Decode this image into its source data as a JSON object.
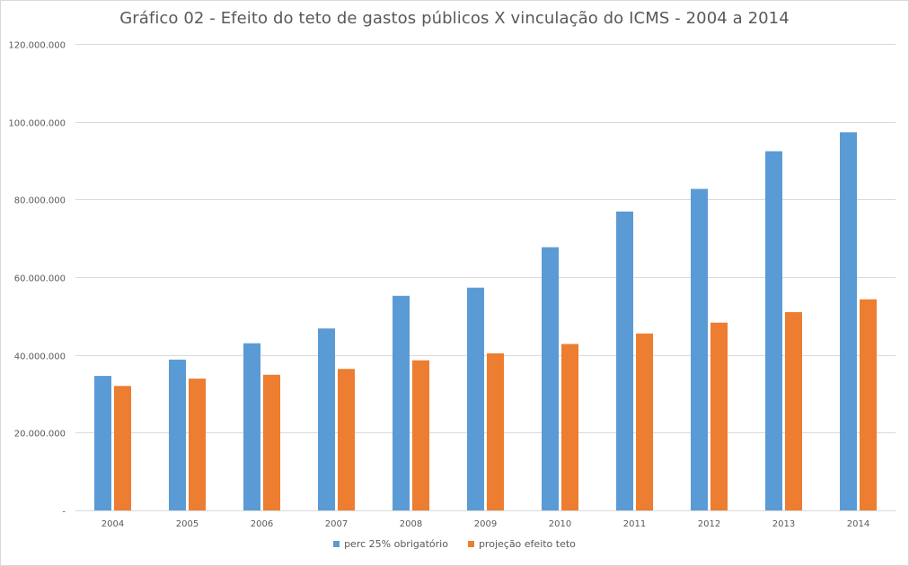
{
  "chart_data": {
    "type": "bar",
    "title": "Gráfico 02 - Efeito do teto de gastos públicos X vinculação do ICMS - 2004 a 2014",
    "xlabel": "",
    "ylabel": "",
    "categories": [
      "2004",
      "2005",
      "2006",
      "2007",
      "2008",
      "2009",
      "2010",
      "2011",
      "2012",
      "2013",
      "2014"
    ],
    "series": [
      {
        "name": "perc 25% obrigatório",
        "color": "#5b9bd5",
        "values": [
          34600000,
          38800000,
          43000000,
          46800000,
          55200000,
          57300000,
          67700000,
          76900000,
          82700000,
          92400000,
          97300000
        ]
      },
      {
        "name": "projeção efeito teto",
        "color": "#ed7d31",
        "values": [
          32000000,
          33900000,
          34900000,
          36400000,
          38600000,
          40400000,
          42800000,
          45500000,
          48300000,
          51000000,
          54300000
        ]
      }
    ],
    "ylim": [
      0,
      120000000
    ],
    "yticks": [
      0,
      20000000,
      40000000,
      60000000,
      80000000,
      100000000,
      120000000
    ],
    "ytick_labels": [
      "-",
      "20.000.000",
      "40.000.000",
      "60.000.000",
      "80.000.000",
      "100.000.000",
      "120.000.000"
    ],
    "grid": true,
    "legend": "bottom-center"
  }
}
